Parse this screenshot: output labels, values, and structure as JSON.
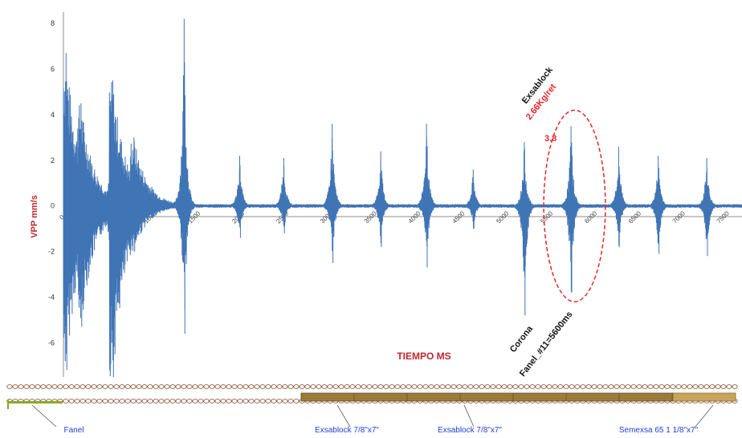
{
  "chart_data": {
    "type": "line",
    "title": "",
    "ylabel": "VPP mm/s",
    "xlabel": "TIEMPO MS",
    "ylim": [
      -7.5,
      8.5
    ],
    "xlim": [
      0,
      7700
    ],
    "yticks": [
      -6,
      -4,
      -2,
      0,
      2,
      4,
      6,
      8
    ],
    "xticks": [
      0,
      500,
      1000,
      1500,
      2000,
      2500,
      3000,
      3500,
      4000,
      4500,
      5000,
      5500,
      6000,
      6500,
      7000,
      7500
    ],
    "grid": false,
    "series": [
      {
        "color": "#3f74b5",
        "peaks": [
          {
            "x": 30,
            "max": 6.7,
            "min": -7.2
          },
          {
            "x": 200,
            "max": 4.5,
            "min": -5.3
          },
          {
            "x": 560,
            "max": 5.5,
            "min": -7.5
          },
          {
            "x": 800,
            "max": 3.0,
            "min": -2.0
          },
          {
            "x": 1370,
            "max": 8.2,
            "min": -5.6
          },
          {
            "x": 2000,
            "max": 2.2,
            "min": -1.4
          },
          {
            "x": 2500,
            "max": 2.1,
            "min": -1.2
          },
          {
            "x": 3050,
            "max": 3.6,
            "min": -2.5
          },
          {
            "x": 3600,
            "max": 2.4,
            "min": -1.8
          },
          {
            "x": 4120,
            "max": 3.6,
            "min": -2.7
          },
          {
            "x": 4650,
            "max": 1.6,
            "min": -1.0
          },
          {
            "x": 5230,
            "max": 2.8,
            "min": -4.8
          },
          {
            "x": 5760,
            "max": 3.5,
            "min": -3.8
          },
          {
            "x": 6300,
            "max": 2.6,
            "min": -1.8
          },
          {
            "x": 6750,
            "max": 2.2,
            "min": -2.1
          },
          {
            "x": 7300,
            "max": 2.1,
            "min": -2.2
          }
        ]
      }
    ],
    "annotations": [
      {
        "text": "Exsablock",
        "x": 6550,
        "y": 5.8,
        "color": "#111111"
      },
      {
        "text": "2.66Kg/ret",
        "x": 6560,
        "y": 5.0,
        "color": "#e8232a"
      },
      {
        "text": "3.8",
        "x": 5520,
        "y": 3.7,
        "color": "#e8232a"
      },
      {
        "text": "Corona",
        "x": 5570,
        "y": -5.8,
        "color": "#111111"
      },
      {
        "text": "Fanel_#11=5600ms",
        "x": 5540,
        "y": -6.8,
        "color": "#111111"
      }
    ],
    "highlight_ellipse": {
      "x_center": 5800,
      "y_center": 0.0,
      "x_radius": 350,
      "y_radius": 4.2,
      "color": "#e8232a"
    }
  },
  "deck_labels": {
    "fanel": "Fanel",
    "exsablock_1": "Exsablock 7/8\"x7\"",
    "exsablock_2": "Exsablock 7/8\"x7\"",
    "semexsa": "Semexsa 65 1 1/8\"x7\""
  }
}
